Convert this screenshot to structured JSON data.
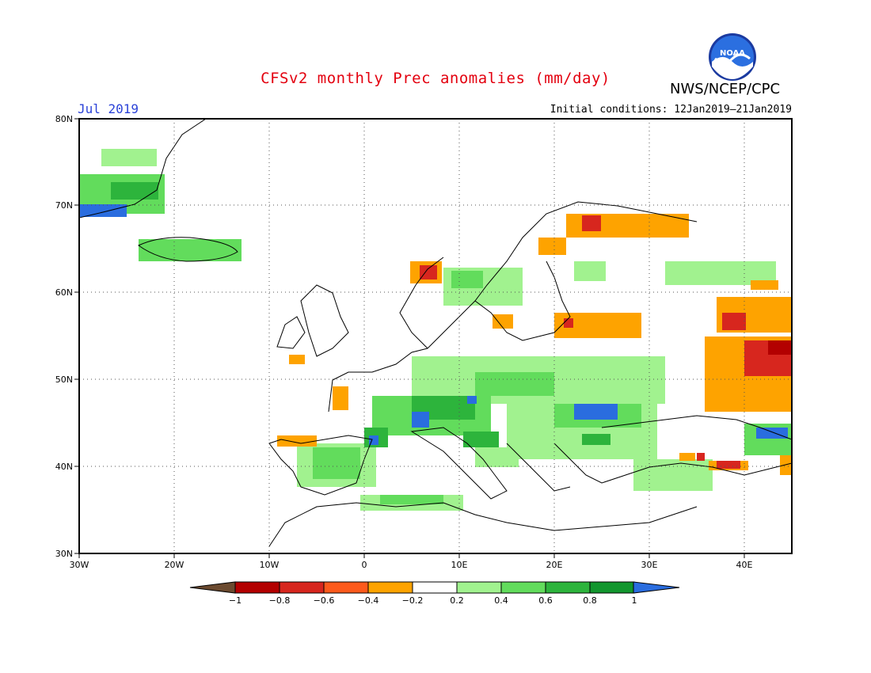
{
  "header": {
    "title": "CFSv2 monthly Prec anomalies (mm/day)",
    "month": "Jul 2019",
    "initial_conditions": "Initial conditions: 12Jan2019–21Jan2019",
    "agency": "NWS/NCEP/CPC",
    "logo_text": "NOAA"
  },
  "map": {
    "lon_range": [
      -30,
      45
    ],
    "lat_range": [
      30,
      80
    ],
    "lat_ticks": [
      "30N",
      "40N",
      "50N",
      "60N",
      "70N",
      "80N"
    ],
    "lon_ticks": [
      "30W",
      "20W",
      "10W",
      "0",
      "10E",
      "20E",
      "30E",
      "40E"
    ],
    "grid": "dotted"
  },
  "legend": {
    "labels": [
      "−1",
      "−0.8",
      "−0.6",
      "−0.4",
      "−0.2",
      "0.2",
      "0.4",
      "0.6",
      "0.8",
      "1"
    ],
    "colors": [
      "#6b4a2f",
      "#b30000",
      "#d7261e",
      "#fd5a1c",
      "#fea300",
      "#ffffff",
      "#a1f28f",
      "#62dc5c",
      "#2db43c",
      "#12962e",
      "#2a6ddf"
    ]
  },
  "colors": {
    "title": "#e3000f",
    "month": "#2c43d8"
  }
}
